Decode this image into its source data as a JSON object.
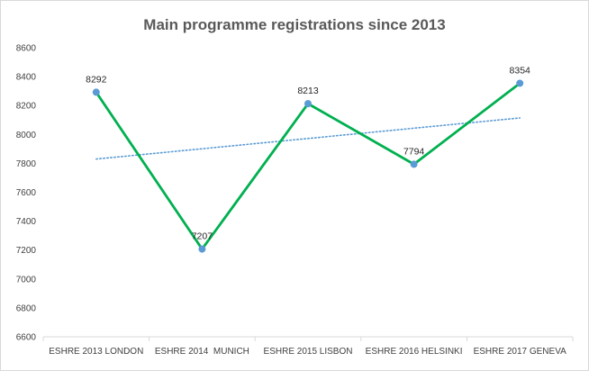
{
  "chart_data": {
    "type": "line",
    "title": "Main programme registrations since 2013",
    "categories": [
      "ESHRE 2013 LONDON",
      "ESHRE 2014  MUNICH",
      "ESHRE 2015 LISBON",
      "ESHRE 2016 HELSINKI",
      "ESHRE 2017 GENEVA"
    ],
    "series": [
      {
        "values": [
          8292,
          7207,
          8213,
          7794,
          8354
        ],
        "color": "#00b050",
        "marker_color": "#5b9bd5"
      }
    ],
    "trendline": {
      "type": "linear",
      "style": "dotted",
      "color": "#5b9bd5"
    },
    "data_labels": [
      "8292",
      "7207",
      "8213",
      "7794",
      "8354"
    ],
    "ylim": [
      6600,
      8600
    ],
    "yticks": [
      "6600",
      "6800",
      "7000",
      "7200",
      "7400",
      "7600",
      "7800",
      "8000",
      "8200",
      "8400",
      "8600"
    ],
    "grid": false,
    "legend": "none",
    "xlabel": "",
    "ylabel": ""
  }
}
